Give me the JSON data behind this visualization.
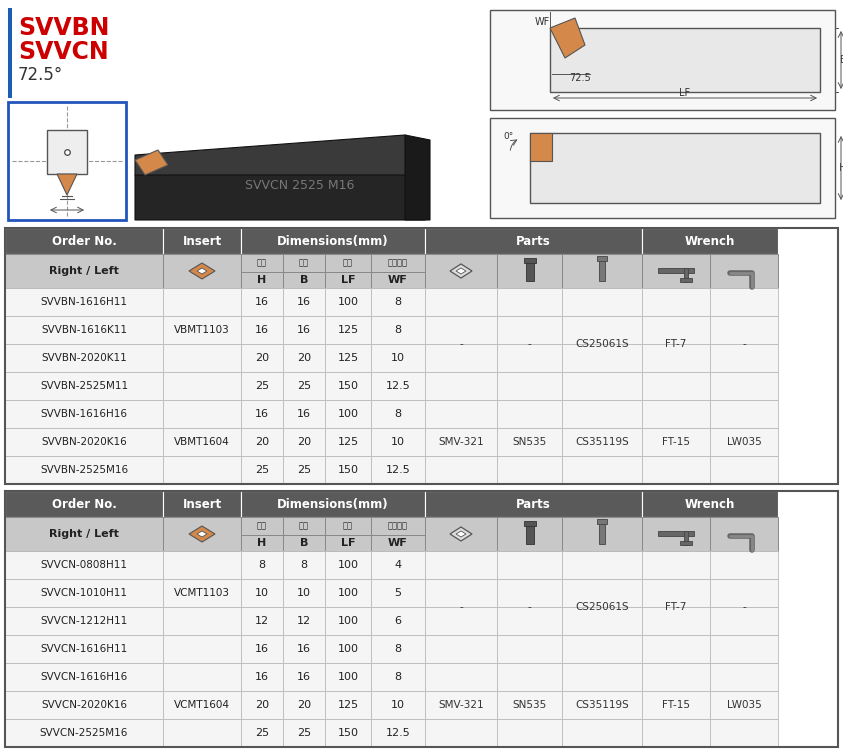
{
  "title_color": "#cc0000",
  "header_bg": "#5a5a5a",
  "subheader_bg": "#c8c8c8",
  "table1_rows": [
    [
      "SVVBN-1616H11",
      "",
      "16",
      "16",
      "100",
      "8"
    ],
    [
      "SVVBN-1616K11",
      "VBMT1103",
      "16",
      "16",
      "125",
      "8"
    ],
    [
      "SVVBN-2020K11",
      "",
      "20",
      "20",
      "125",
      "10"
    ],
    [
      "SVVBN-2525M11",
      "",
      "25",
      "25",
      "150",
      "12.5"
    ],
    [
      "SVVBN-1616H16",
      "",
      "16",
      "16",
      "100",
      "8"
    ],
    [
      "SVVBN-2020K16",
      "VBMT1604",
      "20",
      "20",
      "125",
      "10"
    ],
    [
      "SVVBN-2525M16",
      "",
      "25",
      "25",
      "150",
      "12.5"
    ]
  ],
  "table2_rows": [
    [
      "SVVCN-0808H11",
      "",
      "8",
      "8",
      "100",
      "4"
    ],
    [
      "SVVCN-1010H11",
      "VCMT1103",
      "10",
      "10",
      "100",
      "5"
    ],
    [
      "SVVCN-1212H11",
      "",
      "12",
      "12",
      "100",
      "6"
    ],
    [
      "SVVCN-1616H11",
      "",
      "16",
      "16",
      "100",
      "8"
    ],
    [
      "SVVCN-1616H16",
      "",
      "16",
      "16",
      "100",
      "8"
    ],
    [
      "SVVCN-2020K16",
      "VCMT1604",
      "20",
      "20",
      "125",
      "10"
    ],
    [
      "SVVCN-2525M16",
      "",
      "25",
      "25",
      "150",
      "12.5"
    ]
  ],
  "t1_parts1": [
    "-",
    "-",
    "CS25061S",
    "FT-7",
    "-"
  ],
  "t1_parts2": [
    "SMV-321",
    "SN535",
    "CS35119S",
    "FT-15",
    "LW035"
  ],
  "t2_parts1": [
    "-",
    "-",
    "CS25061S",
    "FT-7",
    "-"
  ],
  "t2_parts2": [
    "SMV-321",
    "SN535",
    "CS35119S",
    "FT-15",
    "LW035"
  ],
  "zh_labels": [
    "柳高",
    "柳寬",
    "長度",
    "工作寬度"
  ],
  "en_labels": [
    "H",
    "B",
    "LF",
    "WF"
  ]
}
